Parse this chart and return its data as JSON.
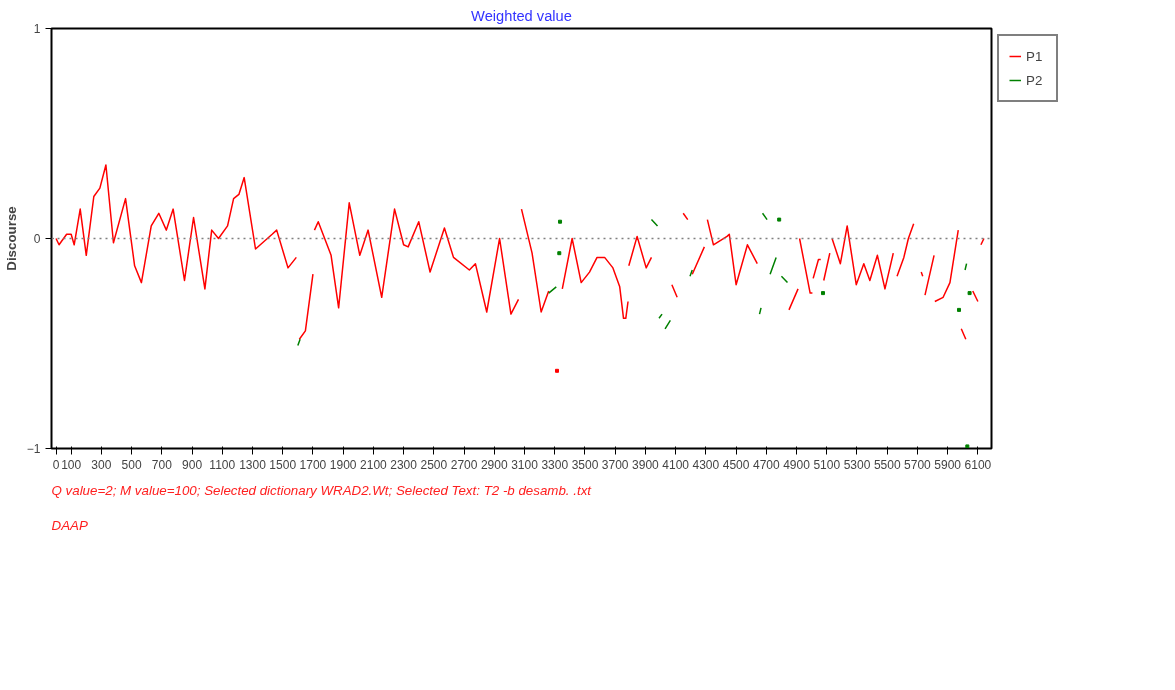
{
  "chart_data": {
    "type": "line",
    "title": "Weighted value",
    "ylabel": "Discourse",
    "xlim": [
      -30,
      6190
    ],
    "ylim": [
      -1,
      1
    ],
    "xticks": [
      0,
      100,
      300,
      500,
      700,
      900,
      1100,
      1300,
      1500,
      1700,
      1900,
      2100,
      2300,
      2500,
      2700,
      2900,
      3100,
      3300,
      3500,
      3700,
      3900,
      4100,
      4300,
      4500,
      4700,
      4900,
      5100,
      5300,
      5500,
      5700,
      5900,
      6100
    ],
    "yticks": [
      -1,
      0,
      1
    ],
    "grid": false,
    "legend": "top right",
    "marker": "none",
    "line_style": "solid",
    "ref_lines": [
      {
        "axis": "y",
        "value": 0,
        "label": null,
        "color": "#808080",
        "line_style": "dotted"
      }
    ],
    "annotations": [
      "Q value=2; M value=100; Selected dictionary WRAD2.Wt; Selected Text: T2 -b desamb. .txt",
      "DAAP"
    ],
    "series": [
      {
        "name": "P1",
        "color": "#ff0000",
        "x": [
          0,
          20,
          70,
          100,
          120,
          160,
          200,
          250,
          290,
          330,
          380,
          460,
          520,
          565,
          630,
          680,
          730,
          775,
          850,
          910,
          985,
          1030,
          1075,
          1135,
          1175,
          1210,
          1245,
          1320,
          1430,
          1460,
          1535,
          1590,
          1600,
          1610,
          1650,
          1700,
          1705,
          1710,
          1735,
          1820,
          1870,
          1940,
          2010,
          2065,
          2155,
          2240,
          2300,
          2330,
          2400,
          2475,
          2570,
          2630,
          2735,
          2775,
          2850,
          2935,
          3010,
          3060,
          3070,
          3080,
          3150,
          3210,
          3260,
          3290,
          3315,
          3330,
          3350,
          3415,
          3475,
          3530,
          3580,
          3630,
          3685,
          3730,
          3755,
          3770,
          3785,
          3786,
          3790,
          3845,
          3905,
          3940,
          3950,
          4075,
          4110,
          4120,
          4150,
          4180,
          4190,
          4210,
          4290,
          4300,
          4310,
          4350,
          4440,
          4455,
          4500,
          4575,
          4640,
          4645,
          4850,
          4910,
          4915,
          4920,
          4990,
          5005,
          5006,
          5010,
          5045,
          5060,
          5070,
          5080,
          5120,
          5130,
          5135,
          5190,
          5235,
          5295,
          5345,
          5385,
          5435,
          5485,
          5540,
          5555,
          5565,
          5610,
          5640,
          5675,
          5680,
          5725,
          5735,
          5740,
          5750,
          5810,
          5812,
          5815,
          5870,
          5915,
          5970,
          5980,
          5990,
          6020,
          6040,
          6066,
          6100,
          6110,
          6120,
          6140
        ],
        "values": [
          0,
          -0.03,
          0.02,
          0.02,
          -0.03,
          0.14,
          -0.08,
          0.2,
          0.24,
          0.35,
          -0.02,
          0.19,
          -0.13,
          -0.21,
          0.06,
          0.12,
          0.04,
          0.14,
          -0.2,
          0.1,
          -0.24,
          0.04,
          0,
          0.06,
          0.19,
          0.21,
          0.29,
          -0.05,
          0.02,
          0.04,
          -0.14,
          -0.09,
          null,
          -0.48,
          -0.44,
          -0.17,
          null,
          0.04,
          0.08,
          -0.08,
          -0.33,
          0.17,
          -0.08,
          0.04,
          -0.28,
          0.14,
          -0.03,
          -0.04,
          0.08,
          -0.16,
          0.05,
          -0.09,
          -0.15,
          -0.12,
          -0.35,
          0,
          -0.36,
          -0.29,
          null,
          0.14,
          -0.07,
          -0.35,
          -0.25,
          null,
          -0.63,
          null,
          -0.24,
          0,
          -0.21,
          -0.16,
          -0.09,
          -0.09,
          -0.14,
          -0.23,
          -0.38,
          -0.38,
          -0.3,
          null,
          -0.13,
          0.01,
          -0.14,
          -0.09,
          null,
          -0.22,
          -0.28,
          null,
          0.12,
          0.09,
          null,
          -0.17,
          -0.04,
          null,
          0.09,
          -0.03,
          0.01,
          0.02,
          -0.22,
          -0.03,
          -0.12,
          null,
          -0.34,
          -0.24,
          null,
          0,
          -0.26,
          -0.26,
          null,
          -0.19,
          -0.1,
          -0.1,
          null,
          -0.2,
          -0.07,
          null,
          0,
          -0.12,
          0.06,
          -0.22,
          -0.12,
          -0.2,
          -0.08,
          -0.24,
          -0.07,
          null,
          -0.18,
          -0.09,
          0,
          0.07,
          null,
          -0.16,
          -0.18,
          null,
          -0.27,
          -0.08,
          null,
          -0.3,
          -0.28,
          -0.21,
          0.04,
          null,
          -0.43,
          -0.48,
          null,
          -0.25,
          -0.3,
          null,
          -0.03,
          0
        ]
      },
      {
        "name": "P2",
        "color": "#008000",
        "x": [
          1600,
          1615,
          1620,
          3260,
          3310,
          3320,
          3330,
          3332,
          3335,
          3338,
          3940,
          3980,
          3985,
          3990,
          4010,
          4020,
          4030,
          4065,
          4070,
          4195,
          4210,
          4220,
          4655,
          4665,
          4670,
          4675,
          4705,
          4710,
          4725,
          4765,
          4770,
          4785,
          4790,
          4800,
          4840,
          4845,
          5075,
          5080,
          5975,
          5980,
          6015,
          6025,
          6028,
          6030,
          6035,
          6045
        ],
        "values": [
          -0.51,
          -0.48,
          null,
          -0.26,
          -0.23,
          null,
          -0.07,
          null,
          0.08,
          null,
          0.09,
          0.06,
          null,
          -0.38,
          -0.36,
          null,
          -0.43,
          -0.39,
          null,
          -0.18,
          -0.15,
          null,
          -0.36,
          -0.33,
          null,
          0.12,
          0.09,
          null,
          -0.17,
          -0.09,
          null,
          0.09,
          null,
          -0.18,
          -0.21,
          null,
          -0.26,
          null,
          -0.34,
          null,
          -0.15,
          -0.12,
          null,
          -0.99,
          null,
          -0.26
        ]
      }
    ]
  }
}
